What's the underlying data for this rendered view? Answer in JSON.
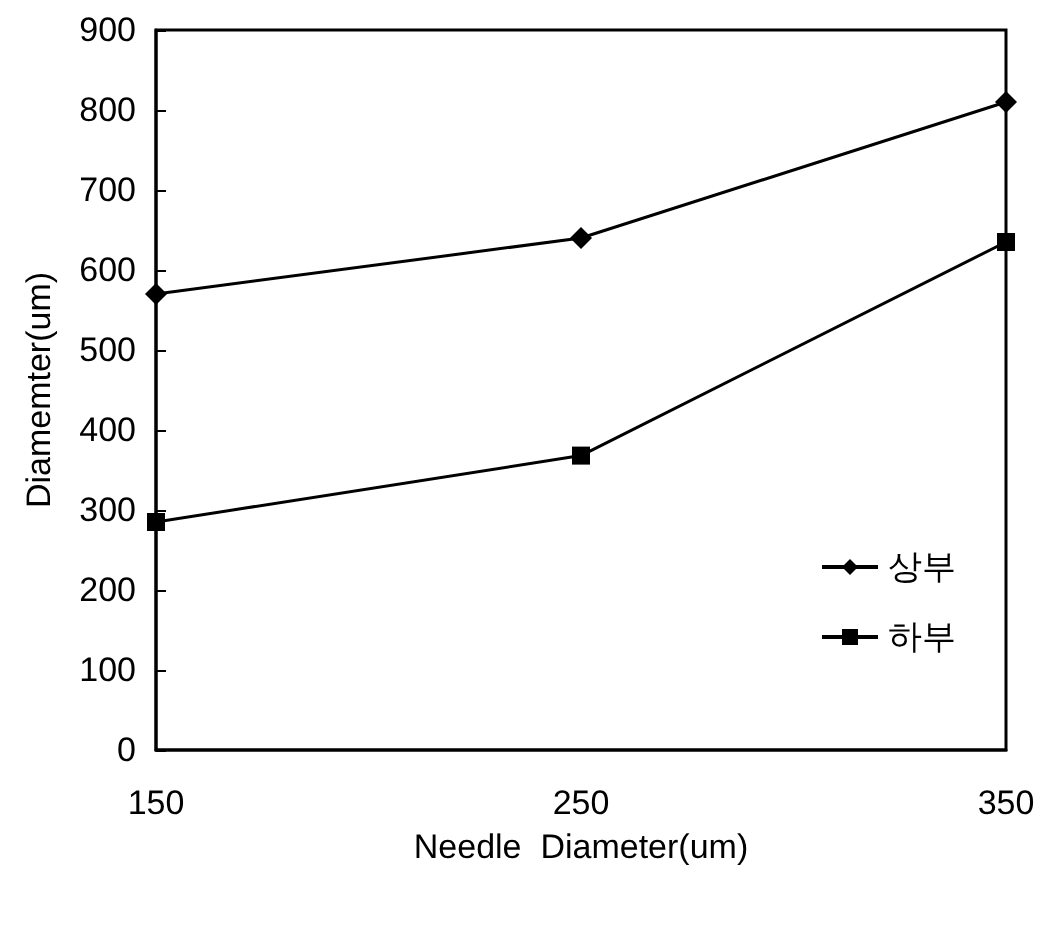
{
  "chart_data": {
    "type": "line",
    "xlabel": "Needle  Diameter(um)",
    "ylabel": "Diamemter(um)",
    "x": [
      150,
      250,
      350
    ],
    "xlim": [
      150,
      350
    ],
    "xticks": [
      150,
      250,
      350
    ],
    "ylim": [
      0,
      900
    ],
    "yticks": [
      0,
      100,
      200,
      300,
      400,
      500,
      600,
      700,
      800,
      900
    ],
    "series": [
      {
        "name": "상부",
        "color": "#000000",
        "marker": "diamond",
        "values": [
          570,
          640,
          810
        ]
      },
      {
        "name": "하부",
        "color": "#000000",
        "marker": "square",
        "values": [
          285,
          368,
          635
        ]
      }
    ],
    "grid": false,
    "legend": "right",
    "line_style": "solid"
  }
}
